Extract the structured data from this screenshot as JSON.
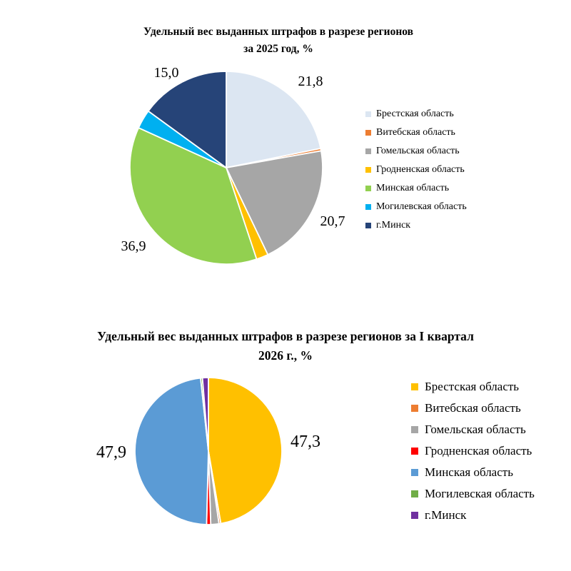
{
  "page": {
    "background": "#ffffff"
  },
  "chart_data": [
    {
      "type": "pie",
      "title": "Удельный вес выданных штрафов в разрезе регионов за 2025 год, %",
      "title_lines": [
        "Удельный вес выданных штрафов в разрезе регионов",
        "за 2025 год, %"
      ],
      "categories": [
        "Брестская область",
        "Витебская область",
        "Гомельская область",
        "Гродненская область",
        "Минская область",
        "Могилевская область",
        "г.Минск"
      ],
      "values": [
        21.8,
        0.4,
        20.7,
        2.0,
        36.9,
        3.2,
        15.0
      ],
      "colors": [
        "#dce6f2",
        "#ed7d31",
        "#a6a6a6",
        "#ffc000",
        "#92d050",
        "#00b0f0",
        "#264478"
      ],
      "start_angle_deg": 0,
      "direction": "clockwise",
      "legend_position": "right",
      "slice_border_color": "#ffffff",
      "visible_labels": [
        {
          "slice": "Брестская область",
          "text": "21,8"
        },
        {
          "slice": "Гомельская область",
          "text": "20,7"
        },
        {
          "slice": "Минская область",
          "text": "36,9"
        },
        {
          "slice": "г.Минск",
          "text": "15,0"
        }
      ]
    },
    {
      "type": "pie",
      "title": "Удельный вес выданных штрафов в разрезе регионов за I квартал 2026 г., %",
      "title_lines": [
        "Удельный вес выданных штрафов в разрезе регионов за I квартал",
        "2026 г., %"
      ],
      "categories": [
        "Брестская область",
        "Витебская область",
        "Гомельская область",
        "Гродненская область",
        "Минская область",
        "Могилевская область",
        "г.Минск"
      ],
      "values": [
        47.3,
        0.4,
        1.8,
        0.9,
        47.9,
        0.4,
        1.3
      ],
      "colors": [
        "#ffc000",
        "#ed7d31",
        "#a6a6a6",
        "#ff0000",
        "#5b9bd5",
        "#70ad47",
        "#7030a0"
      ],
      "start_angle_deg": 0,
      "direction": "clockwise",
      "legend_position": "right",
      "slice_border_color": "#ffffff",
      "visible_labels": [
        {
          "slice": "Брестская область",
          "text": "47,3"
        },
        {
          "slice": "Минская область",
          "text": "47,9"
        }
      ]
    }
  ]
}
